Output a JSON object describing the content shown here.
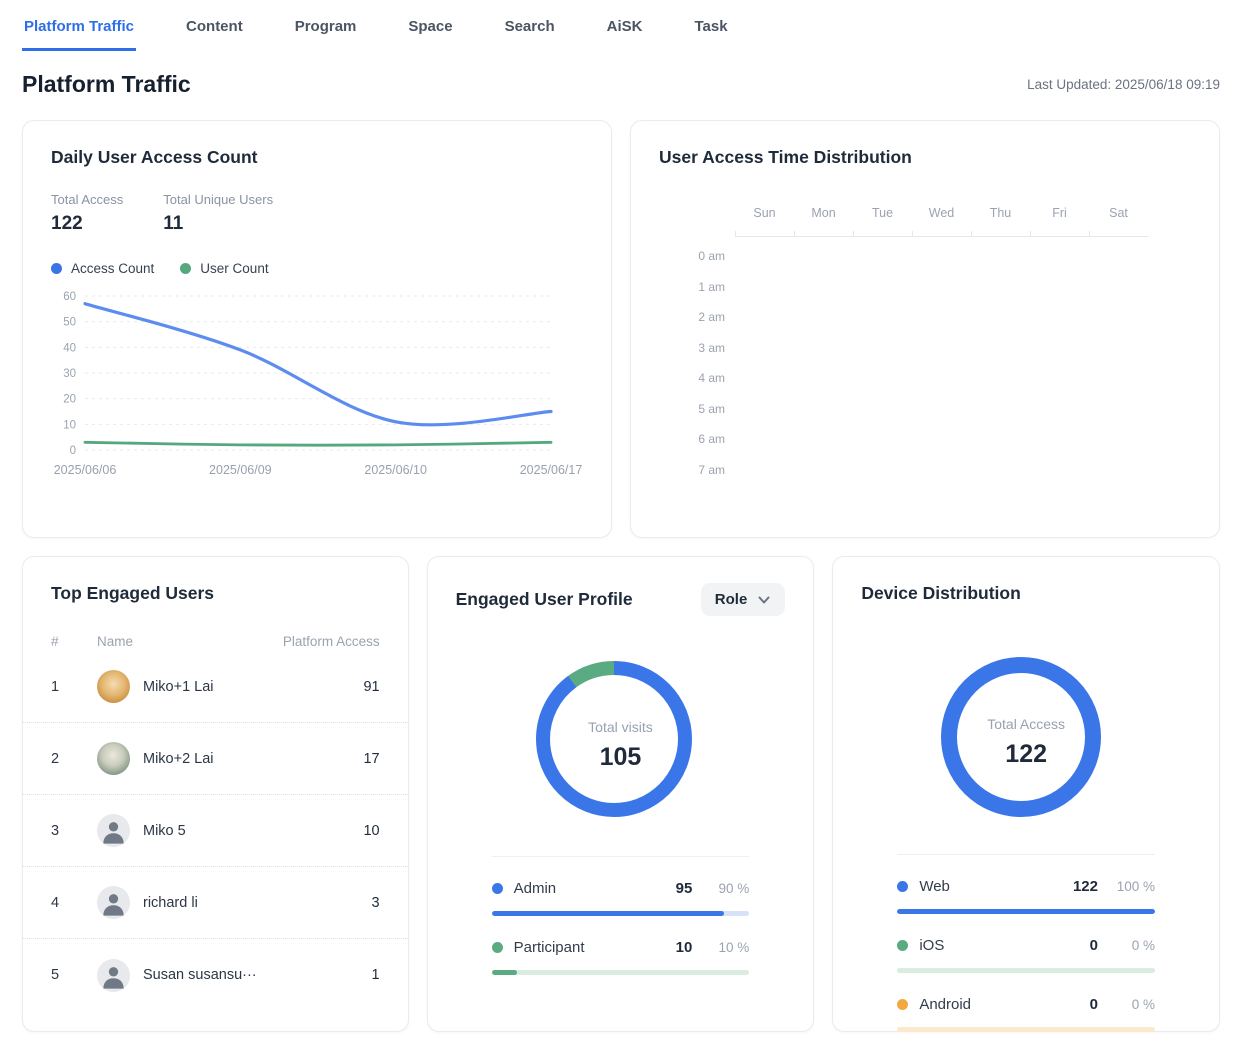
{
  "nav": {
    "tabs": [
      {
        "label": "Platform Traffic",
        "active": true
      },
      {
        "label": "Content",
        "active": false
      },
      {
        "label": "Program",
        "active": false
      },
      {
        "label": "Space",
        "active": false
      },
      {
        "label": "Search",
        "active": false
      },
      {
        "label": "AiSK",
        "active": false
      },
      {
        "label": "Task",
        "active": false
      }
    ]
  },
  "page": {
    "title": "Platform Traffic",
    "last_updated": "Last Updated: 2025/06/18 09:19"
  },
  "daily_access": {
    "title": "Daily User Access Count",
    "stats": [
      {
        "label": "Total Access",
        "value": "122"
      },
      {
        "label": "Total Unique Users",
        "value": "11"
      }
    ],
    "legend": [
      {
        "label": "Access Count",
        "color": "#3b74e6"
      },
      {
        "label": "User Count",
        "color": "#55a87d"
      }
    ]
  },
  "time_distribution": {
    "title": "User Access Time Distribution"
  },
  "top_users": {
    "title": "Top Engaged Users",
    "columns": [
      "#",
      "Name",
      "Platform Access"
    ],
    "rows": [
      {
        "rank": "1",
        "name": "Miko+1 Lai",
        "access": "91",
        "avatar": "dog-photo"
      },
      {
        "rank": "2",
        "name": "Miko+2 Lai",
        "access": "17",
        "avatar": "cat-photo"
      },
      {
        "rank": "3",
        "name": "Miko 5",
        "access": "10",
        "avatar": "placeholder"
      },
      {
        "rank": "4",
        "name": "richard li",
        "access": "3",
        "avatar": "placeholder"
      },
      {
        "rank": "5",
        "name": "Susan susansu···",
        "access": "1",
        "avatar": "placeholder"
      }
    ]
  },
  "user_profile": {
    "title": "Engaged User Profile",
    "filter_label": "Role"
  },
  "device_distribution": {
    "title": "Device Distribution"
  },
  "chart_data": [
    {
      "id": "daily_user_access_line",
      "type": "line",
      "x": [
        "2025/06/06",
        "2025/06/09",
        "2025/06/10",
        "2025/06/17"
      ],
      "series": [
        {
          "name": "Access Count",
          "color": "#5d8cf0",
          "values": [
            57,
            39,
            11,
            15
          ]
        },
        {
          "name": "User Count",
          "color": "#55a87d",
          "values": [
            3,
            2,
            2,
            3
          ]
        }
      ],
      "ylim": [
        0,
        60
      ],
      "yticks": [
        0,
        10,
        20,
        30,
        40,
        50,
        60
      ],
      "grid": "horizontal-dashed",
      "smooth": true,
      "legend_position": "top"
    },
    {
      "id": "engaged_user_profile_donut",
      "type": "pie",
      "center_label": "Total visits",
      "center_value": "105",
      "slices": [
        {
          "label": "Admin",
          "value": "95",
          "pct": 90,
          "pct_text": "90 %",
          "color": "#3b76e9",
          "track": "#d7e2f9"
        },
        {
          "label": "Participant",
          "value": "10",
          "pct": 10,
          "pct_text": "10 %",
          "color": "#5aab81",
          "track": "#d9ecdf"
        }
      ],
      "legend_position": "bottom"
    },
    {
      "id": "device_distribution_donut",
      "type": "pie",
      "center_label": "Total Access",
      "center_value": "122",
      "slices": [
        {
          "label": "Web",
          "value": "122",
          "pct": 100,
          "pct_text": "100 %",
          "color": "#3b76e9",
          "track": "#d7e2f9"
        },
        {
          "label": "iOS",
          "value": "0",
          "pct": 0,
          "pct_text": "0 %",
          "color": "#5aab81",
          "track": "#d9ecdf"
        },
        {
          "label": "Android",
          "value": "0",
          "pct": 0,
          "pct_text": "0 %",
          "color": "#f2a93f",
          "track": "#fce8ca"
        }
      ],
      "legend_position": "bottom"
    },
    {
      "id": "user_access_time_heatmap",
      "type": "heatmap",
      "columns": [
        "Sun",
        "Mon",
        "Tue",
        "Wed",
        "Thu",
        "Fri",
        "Sat"
      ],
      "rows": [
        "0 am",
        "1 am",
        "2 am",
        "3 am",
        "4 am",
        "5 am",
        "6 am",
        "7 am"
      ],
      "values": []
    }
  ]
}
